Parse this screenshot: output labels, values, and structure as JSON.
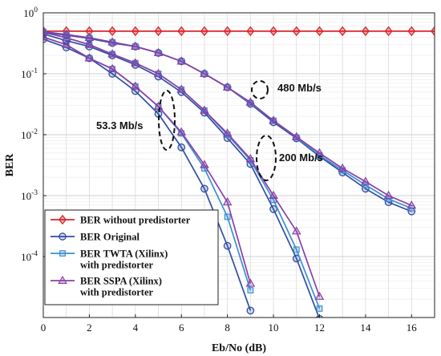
{
  "chart_data": {
    "type": "line",
    "xlabel": "Eb/No (dB)",
    "ylabel": "BER",
    "xlim": [
      0,
      17
    ],
    "ylim": [
      1e-05,
      1
    ],
    "yscale": "log",
    "grid": true,
    "legend_position": "bottom-left",
    "x_ticks": [
      0,
      2,
      4,
      6,
      8,
      10,
      12,
      14,
      16
    ],
    "y_ticks": [
      {
        "value": 1,
        "base": "10",
        "exp": "0"
      },
      {
        "value": 0.1,
        "base": "10",
        "exp": "-1"
      },
      {
        "value": 0.01,
        "base": "10",
        "exp": "-2"
      },
      {
        "value": 0.001,
        "base": "10",
        "exp": "-3"
      },
      {
        "value": 0.0001,
        "base": "10",
        "exp": "-4"
      }
    ],
    "series": [
      {
        "name": "BER without predistorter",
        "color": "#d9262c",
        "marker": "diamond",
        "points": [
          [
            0,
            0.5
          ],
          [
            1,
            0.5
          ],
          [
            2,
            0.5
          ],
          [
            3,
            0.5
          ],
          [
            4,
            0.5
          ],
          [
            5,
            0.5
          ],
          [
            6,
            0.5
          ],
          [
            7,
            0.5
          ],
          [
            8,
            0.5
          ],
          [
            9,
            0.5
          ],
          [
            10,
            0.5
          ],
          [
            11,
            0.5
          ],
          [
            12,
            0.5
          ],
          [
            13,
            0.5
          ],
          [
            14,
            0.5
          ],
          [
            15,
            0.5
          ],
          [
            16,
            0.5
          ],
          [
            17,
            0.5
          ]
        ]
      },
      {
        "name": "BER Original",
        "color": "#2f4ea2",
        "marker": "circle",
        "points": [
          [
            0,
            0.37
          ],
          [
            1,
            0.27
          ],
          [
            2,
            0.18
          ],
          [
            3,
            0.1
          ],
          [
            4,
            0.052
          ],
          [
            5,
            0.022
          ],
          [
            6,
            0.0062
          ],
          [
            7,
            0.0013
          ],
          [
            8,
            0.00015
          ],
          [
            9,
            1.3e-05
          ]
        ]
      },
      {
        "name": "BER TWTA (Xilinx) with predistorter",
        "color": "#3a8fd1",
        "marker": "square",
        "points": [
          [
            0,
            0.4
          ],
          [
            1,
            0.3
          ],
          [
            2,
            0.18
          ],
          [
            3,
            0.12
          ],
          [
            4,
            0.062
          ],
          [
            5,
            0.029
          ],
          [
            6,
            0.0105
          ],
          [
            7,
            0.0028
          ],
          [
            8,
            0.00045
          ],
          [
            9,
            2.8e-05
          ]
        ]
      },
      {
        "name": "BER SSPA (Xilinx) with predistorter",
        "color": "#8b3fa8",
        "marker": "triangle",
        "points": [
          [
            0,
            0.4
          ],
          [
            1,
            0.3
          ],
          [
            2,
            0.18
          ],
          [
            3,
            0.12
          ],
          [
            4,
            0.062
          ],
          [
            5,
            0.029
          ],
          [
            6,
            0.011
          ],
          [
            7,
            0.0032
          ],
          [
            8,
            0.00078
          ],
          [
            9,
            3.6e-05
          ]
        ]
      },
      {
        "name": "BER Original",
        "color": "#2f4ea2",
        "marker": "circle",
        "points": [
          [
            0,
            0.45
          ],
          [
            1,
            0.35
          ],
          [
            2,
            0.28
          ],
          [
            3,
            0.2
          ],
          [
            4,
            0.14
          ],
          [
            5,
            0.09
          ],
          [
            6,
            0.05
          ],
          [
            7,
            0.023
          ],
          [
            8,
            0.0088
          ],
          [
            9,
            0.0033
          ],
          [
            10,
            0.0006
          ],
          [
            11,
            9.3e-05
          ],
          [
            12,
            9.5e-06
          ]
        ]
      },
      {
        "name": "BER TWTA (Xilinx) with predistorter",
        "color": "#3a8fd1",
        "marker": "square",
        "points": [
          [
            0,
            0.48
          ],
          [
            1,
            0.39
          ],
          [
            2,
            0.3
          ],
          [
            3,
            0.21
          ],
          [
            4,
            0.15
          ],
          [
            5,
            0.1
          ],
          [
            6,
            0.055
          ],
          [
            7,
            0.025
          ],
          [
            8,
            0.01
          ],
          [
            9,
            0.0038
          ],
          [
            10,
            0.00085
          ],
          [
            11,
            0.00013
          ],
          [
            12,
            1.4e-05
          ]
        ]
      },
      {
        "name": "BER SSPA (Xilinx) with predistorter",
        "color": "#8b3fa8",
        "marker": "triangle",
        "points": [
          [
            0,
            0.48
          ],
          [
            1,
            0.39
          ],
          [
            2,
            0.3
          ],
          [
            3,
            0.21
          ],
          [
            4,
            0.15
          ],
          [
            5,
            0.1
          ],
          [
            6,
            0.055
          ],
          [
            7,
            0.025
          ],
          [
            8,
            0.0105
          ],
          [
            9,
            0.004
          ],
          [
            10,
            0.001
          ],
          [
            11,
            0.00026
          ],
          [
            12,
            2.2e-05
          ]
        ]
      },
      {
        "name": "BER Original",
        "color": "#2f4ea2",
        "marker": "circle",
        "points": [
          [
            0,
            0.48
          ],
          [
            1,
            0.43
          ],
          [
            2,
            0.38
          ],
          [
            3,
            0.32
          ],
          [
            4,
            0.28
          ],
          [
            5,
            0.22
          ],
          [
            6,
            0.16
          ],
          [
            7,
            0.1
          ],
          [
            8,
            0.06
          ],
          [
            9,
            0.032
          ],
          [
            10,
            0.016
          ],
          [
            11,
            0.0087
          ],
          [
            12,
            0.0044
          ],
          [
            13,
            0.0024
          ],
          [
            14,
            0.0013
          ],
          [
            15,
            0.00078
          ],
          [
            16,
            0.00055
          ]
        ]
      },
      {
        "name": "BER TWTA (Xilinx) with predistorter",
        "color": "#3a8fd1",
        "marker": "square",
        "points": [
          [
            0,
            0.49
          ],
          [
            1,
            0.44
          ],
          [
            2,
            0.39
          ],
          [
            3,
            0.33
          ],
          [
            4,
            0.28
          ],
          [
            5,
            0.22
          ],
          [
            6,
            0.16
          ],
          [
            7,
            0.1
          ],
          [
            8,
            0.06
          ],
          [
            9,
            0.033
          ],
          [
            10,
            0.017
          ],
          [
            11,
            0.009
          ],
          [
            12,
            0.0046
          ],
          [
            13,
            0.0026
          ],
          [
            14,
            0.0015
          ],
          [
            15,
            0.00088
          ],
          [
            16,
            0.00062
          ]
        ]
      },
      {
        "name": "BER SSPA (Xilinx) with predistorter",
        "color": "#8b3fa8",
        "marker": "triangle",
        "points": [
          [
            0,
            0.49
          ],
          [
            1,
            0.44
          ],
          [
            2,
            0.39
          ],
          [
            3,
            0.33
          ],
          [
            4,
            0.28
          ],
          [
            5,
            0.22
          ],
          [
            6,
            0.16
          ],
          [
            7,
            0.1
          ],
          [
            8,
            0.06
          ],
          [
            9,
            0.034
          ],
          [
            10,
            0.017
          ],
          [
            11,
            0.0092
          ],
          [
            12,
            0.005
          ],
          [
            13,
            0.0028
          ],
          [
            14,
            0.0017
          ],
          [
            15,
            0.001
          ],
          [
            16,
            0.00069
          ]
        ]
      }
    ],
    "legend": [
      {
        "label_lines": [
          "BER without predistorter"
        ],
        "color": "#d9262c",
        "marker": "diamond"
      },
      {
        "label_lines": [
          "BER Original"
        ],
        "color": "#2f4ea2",
        "marker": "circle"
      },
      {
        "label_lines": [
          "BER TWTA (Xilinx)",
          "with predistorter"
        ],
        "color": "#3a8fd1",
        "marker": "square"
      },
      {
        "label_lines": [
          "BER SSPA (Xilinx)",
          "with predistorter"
        ],
        "color": "#8b3fa8",
        "marker": "triangle"
      }
    ],
    "annotations": [
      {
        "text": "53.3 Mb/s",
        "x": 5.2,
        "y": 0.022
      },
      {
        "text": "200 Mb/s",
        "x": 9.9,
        "y": 0.0036
      },
      {
        "text": "480 Mb/s",
        "x": 9.3,
        "y": 0.05
      }
    ]
  }
}
